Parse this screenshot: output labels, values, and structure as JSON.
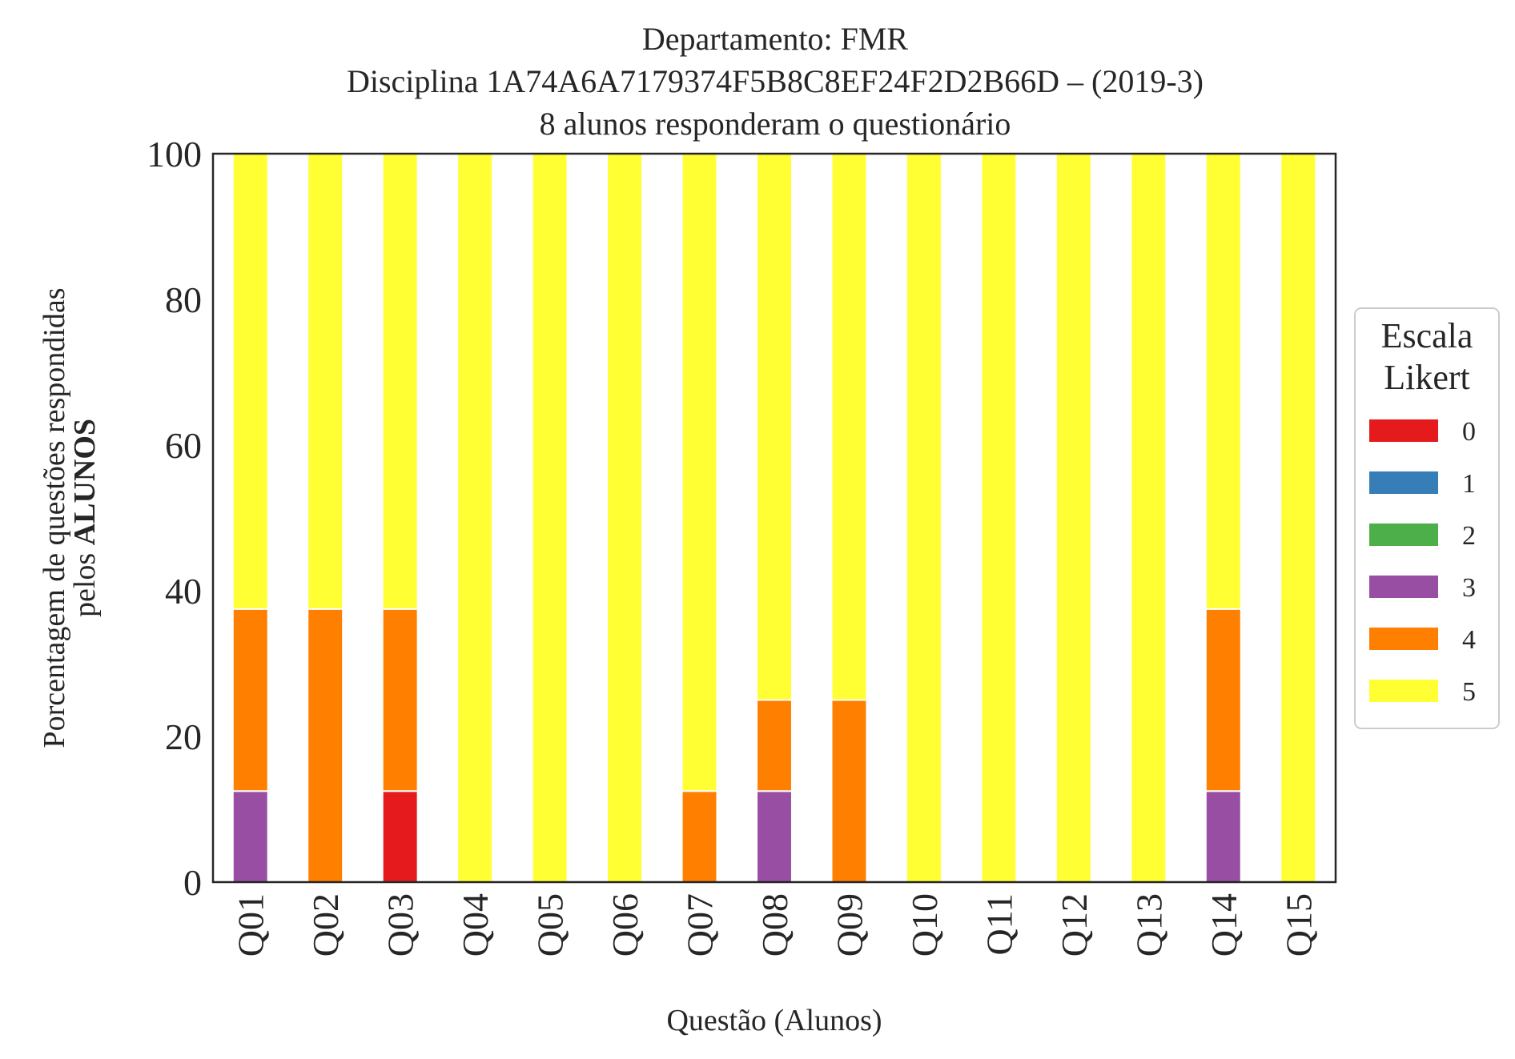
{
  "chart_data": {
    "type": "bar",
    "stacked": true,
    "title_lines": [
      "Departamento: FMR",
      "Disciplina 1A74A6A7179374F5B8C8EF24F2D2B66D – (2019-3)",
      "8 alunos responderam o questionário"
    ],
    "xlabel": "Questão (Alunos)",
    "ylabel_line1": "Porcentagem de questões respondidas",
    "ylabel_line2_prefix": "pelos ",
    "ylabel_line2_bold": "ALUNOS",
    "ylim": [
      0,
      100
    ],
    "yticks": [
      "0",
      "20",
      "40",
      "60",
      "80",
      "100"
    ],
    "grid": false,
    "legend_title_lines": [
      "Escala",
      "Likert"
    ],
    "legend_position": "right",
    "categories": [
      "Q01",
      "Q02",
      "Q03",
      "Q04",
      "Q05",
      "Q06",
      "Q07",
      "Q08",
      "Q09",
      "Q10",
      "Q11",
      "Q12",
      "Q13",
      "Q14",
      "Q15"
    ],
    "series": [
      {
        "name": "0",
        "color": "#e41a1c",
        "values": [
          0,
          0,
          12.5,
          0,
          0,
          0,
          0,
          0,
          0,
          0,
          0,
          0,
          0,
          0,
          0
        ]
      },
      {
        "name": "1",
        "color": "#377eb8",
        "values": [
          0,
          0,
          0,
          0,
          0,
          0,
          0,
          0,
          0,
          0,
          0,
          0,
          0,
          0,
          0
        ]
      },
      {
        "name": "2",
        "color": "#4daf4a",
        "values": [
          0,
          0,
          0,
          0,
          0,
          0,
          0,
          0,
          0,
          0,
          0,
          0,
          0,
          0,
          0
        ]
      },
      {
        "name": "3",
        "color": "#984ea3",
        "values": [
          12.5,
          0,
          0,
          0,
          0,
          0,
          0,
          12.5,
          0,
          0,
          0,
          0,
          0,
          12.5,
          0
        ]
      },
      {
        "name": "4",
        "color": "#ff7f00",
        "values": [
          25,
          37.5,
          25,
          0,
          0,
          0,
          12.5,
          12.5,
          25,
          0,
          0,
          0,
          0,
          25,
          0
        ]
      },
      {
        "name": "5",
        "color": "#ffff33",
        "values": [
          62.5,
          62.5,
          62.5,
          100,
          100,
          100,
          87.5,
          75,
          75,
          100,
          100,
          100,
          100,
          62.5,
          100
        ]
      }
    ]
  }
}
